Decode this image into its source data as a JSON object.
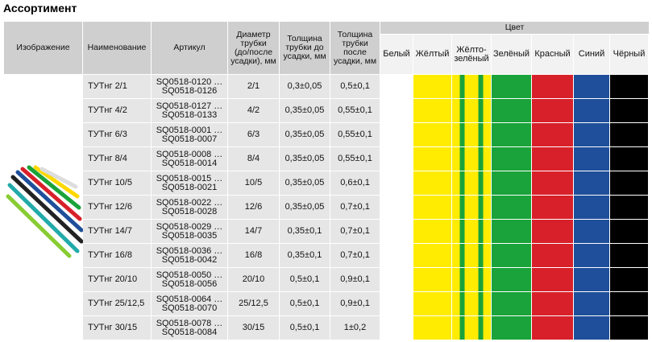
{
  "title": "Ассортимент",
  "table": {
    "headers": [
      [
        "Изображение"
      ],
      [
        "Наименование"
      ],
      [
        "Артикул"
      ],
      [
        "Диаметр",
        "трубки",
        "(до/после",
        "усадки), мм"
      ],
      [
        "Толщина",
        "трубки до",
        "усадки, мм"
      ],
      [
        "Толщина",
        "трубки",
        "после",
        "усадки, мм"
      ]
    ],
    "color_header": "Цвет",
    "colors": [
      [
        "Белый"
      ],
      [
        "Жёлтый"
      ],
      [
        "Жёлто-",
        "зелёный"
      ],
      [
        "Зелёный"
      ],
      [
        "Красный"
      ],
      [
        "Синий"
      ],
      [
        "Чёрный"
      ]
    ],
    "rows": [
      [
        "ТУТнг 2/1",
        [
          "SQ0518-0120 …",
          "SQ0518-0126"
        ],
        "2/1",
        "0,3±0,05",
        "0,5±0,1"
      ],
      [
        "ТУТнг 4/2",
        [
          "SQ0518-0127 …",
          "SQ0518-0133"
        ],
        "4/2",
        "0,35±0,05",
        "0,55±0,1"
      ],
      [
        "ТУТнг 6/3",
        [
          "SQ0518-0001 …",
          "SQ0518-0007"
        ],
        "6/3",
        "0,35±0,05",
        "0,55±0,1"
      ],
      [
        "ТУТнг 8/4",
        [
          "SQ0518-0008 …",
          "SQ0518-0014"
        ],
        "8/4",
        "0,35±0,05",
        "0,55±0,1"
      ],
      [
        "ТУТнг 10/5",
        [
          "SQ0518-0015 …",
          "SQ0518-0021"
        ],
        "10/5",
        "0,35±0,05",
        "0,6±0,1"
      ],
      [
        "ТУТнг 12/6",
        [
          "SQ0518-0022 …",
          "SQ0518-0028"
        ],
        "12/6",
        "0,35±0,05",
        "0,7±0,1"
      ],
      [
        "ТУТнг 14/7",
        [
          "SQ0518-0029 …",
          "SQ0518-0035"
        ],
        "14/7",
        "0,35±0,1",
        "0,7±0,1"
      ],
      [
        "ТУТнг 16/8",
        [
          "SQ0518-0036 …",
          "SQ0518-0042"
        ],
        "16/8",
        "0,35±0,1",
        "0,7±0,1"
      ],
      [
        "ТУТнг 20/10",
        [
          "SQ0518-0050 …",
          "SQ0518-0056"
        ],
        "20/10",
        "0,5±0,1",
        "0,9±0,1"
      ],
      [
        "ТУТнг 25/12,5",
        [
          "SQ0518-0064 …",
          "SQ0518-0070"
        ],
        "25/12,5",
        "0,5±0,1",
        "0,9±0,1"
      ],
      [
        "ТУТнг 30/15",
        [
          "SQ0518-0078 …",
          "SQ0518-0084"
        ],
        "30/15",
        "0,5±0,1",
        "1±0,2"
      ]
    ]
  }
}
